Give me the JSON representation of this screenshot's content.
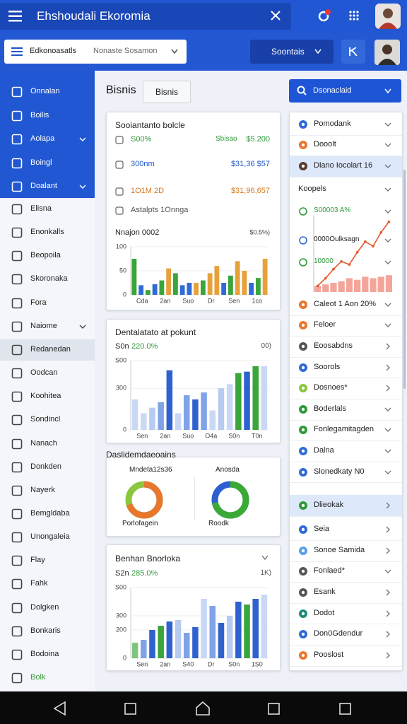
{
  "header": {
    "title": "Ehshoudali Ekoromia"
  },
  "toolbar": {
    "menu_label": "Edkonoasatls",
    "search_placeholder": "Nonaste Sosamon",
    "button": "Soontais"
  },
  "sidebar": {
    "primary_items": [
      {
        "label": "Onnalan"
      },
      {
        "label": "Boilis"
      },
      {
        "label": "Aolapa",
        "chevron": true
      },
      {
        "label": "Boingl"
      },
      {
        "label": "Doalant",
        "chevron": true
      }
    ],
    "items": [
      {
        "label": "Elisna"
      },
      {
        "label": "Enonkalls"
      },
      {
        "label": "Beopoila"
      },
      {
        "label": "Skoronaka"
      },
      {
        "label": "Fora"
      },
      {
        "label": "Naiome",
        "chevron": true
      },
      {
        "label": "Redanedan",
        "highlighted": true
      },
      {
        "label": "Oodcan"
      },
      {
        "label": "Koohitea"
      },
      {
        "label": "Sondincl"
      },
      {
        "label": "Nanach"
      },
      {
        "label": "Donkden"
      },
      {
        "label": "Nayerk"
      },
      {
        "label": "Bemgldaba"
      },
      {
        "label": "Unongaleia"
      },
      {
        "label": "Flay"
      },
      {
        "label": "Fahk"
      },
      {
        "label": "Dolgken"
      },
      {
        "label": "Bonkaris"
      },
      {
        "label": "Bodoina"
      },
      {
        "label": "Bolk",
        "color": "#3a9a3a"
      }
    ]
  },
  "main": {
    "heading": "Bisnis",
    "heading_button": "Bisnis",
    "card_a": {
      "title": "Sooiantanto bolcle",
      "rows": [
        {
          "label": "S00%",
          "note": "Sbisao",
          "value": "$5.200",
          "color": "#2e9a3a"
        },
        {
          "label": "300nm",
          "value": "$31,36 $57",
          "color": "#1d55c9"
        },
        {
          "label": "1O1M 2D",
          "value": "$31,96,657",
          "color": "#d9771e"
        },
        {
          "label": "Astalpts 1Onnga",
          "color": "#555555"
        }
      ],
      "chart": {
        "type": "bar",
        "title": "Nnajon 0002",
        "note": "$0.5%)",
        "categories": [
          "Cda",
          "2an",
          "Suo",
          "Dr",
          "Sen",
          "1co"
        ],
        "values": [
          75,
          20,
          10,
          22,
          30,
          55,
          45,
          20,
          25,
          25,
          30,
          45,
          60,
          25,
          40,
          70,
          50,
          25,
          35,
          75
        ],
        "colors": [
          "#3aa53a",
          "#2f6bd6",
          "#3aa53a",
          "#2f6bd6",
          "#3aa53a",
          "#e7a13a",
          "#3aa53a",
          "#2f6bd6",
          "#2f6bd6",
          "#e7a13a",
          "#3aa53a",
          "#e7a13a",
          "#e7a13a",
          "#2f6bd6",
          "#3aa53a",
          "#e7a13a",
          "#e7a13a",
          "#2f6bd6",
          "#3aa53a",
          "#e7a13a"
        ],
        "ylim": [
          0,
          100
        ],
        "yticks": [
          0,
          50,
          100
        ]
      }
    },
    "card_b": {
      "title": "Dentalatato at pokunt",
      "subtitle_label": "S0n",
      "subtitle_value": "220.0%",
      "note": "00)",
      "chart": {
        "type": "bar",
        "categories": [
          "Sen",
          "2an",
          "Suo",
          "O4a",
          "S0n",
          "T0n"
        ],
        "values": [
          220,
          120,
          160,
          200,
          430,
          120,
          250,
          220,
          270,
          140,
          300,
          330,
          410,
          420,
          460,
          460
        ],
        "colors": [
          "#c9d8f5",
          "#c9d8f5",
          "#b7caf0",
          "#7fa3e6",
          "#2f62cf",
          "#c9d8f5",
          "#7fa3e6",
          "#2f62cf",
          "#7fa3e6",
          "#c9d8f5",
          "#b7caf0",
          "#c9d8f5",
          "#3aa53a",
          "#2f62cf",
          "#3aa53a",
          "#c9d8f5"
        ],
        "ylim": [
          0,
          500
        ],
        "yticks": [
          0,
          {
            "value": 300,
            "label": "300"
          },
          {
            "value": 500,
            "label": "S00"
          }
        ]
      }
    },
    "card_c": {
      "title": "Daslidemdaeoains",
      "left": {
        "label": "Mndeta12s36",
        "caption": "Porlofagein",
        "value": 70,
        "color": "#e8772e",
        "track": "#8cc63f"
      },
      "right": {
        "label": "Anosda",
        "caption": "Roodk",
        "value": 72,
        "color": "#3aaa35",
        "track": "#2d5fd0"
      }
    },
    "card_d": {
      "title": "Benhan Bnorloka",
      "subtitle_label": "S2n",
      "subtitle_value": "285.0%",
      "note": "1K)",
      "chart": {
        "type": "bar",
        "categories": [
          "Sen",
          "2an",
          "S40",
          "Dr",
          "S0n",
          "1S0"
        ],
        "values": [
          110,
          130,
          200,
          230,
          260,
          270,
          180,
          220,
          420,
          370,
          250,
          300,
          400,
          380,
          420,
          450
        ],
        "colors": [
          "#7fc47f",
          "#7fa3e6",
          "#2f62cf",
          "#3aa53a",
          "#2f62cf",
          "#b7caf0",
          "#7fa3e6",
          "#2f62cf",
          "#c9d8f5",
          "#7fa3e6",
          "#2f62cf",
          "#b7caf0",
          "#2f62cf",
          "#3aa53a",
          "#2f62cf",
          "#c9d8f5"
        ],
        "ylim": [
          0,
          500
        ],
        "yticks": [
          0,
          200,
          300,
          {
            "value": 500,
            "label": "S00"
          }
        ]
      }
    }
  },
  "right": {
    "dropdown": "Dsonaclaid",
    "top_items": [
      {
        "label": "Pomodank",
        "icon_color": "#2f6bd6",
        "chevron": "down"
      },
      {
        "label": "Dooolt",
        "icon_color": "#e8772e",
        "chevron": "down"
      },
      {
        "label": "Dlano Iocolart 16",
        "icon_color": "#5a3a2a",
        "chevron": "down",
        "highlighted": true
      }
    ],
    "section_title": "Koopels",
    "chart": {
      "type": "line",
      "labels": [
        {
          "text": "S00003 A%",
          "color": "#2e9a3a"
        },
        {
          "text": "0000Oulksagn",
          "color": "#222222"
        },
        {
          "text": "10000",
          "color": "#2e9a3a"
        }
      ],
      "values": [
        8,
        18,
        30,
        40,
        36,
        52,
        66,
        60,
        78,
        92
      ],
      "color": "#e5562b",
      "bars": [
        8,
        10,
        12,
        14,
        18,
        16,
        20,
        18,
        20,
        22
      ],
      "bar_color": "#f4a59a",
      "ylim": [
        0,
        100
      ]
    },
    "items": [
      {
        "label": "Caleot 1 Aon 20%",
        "icon_color": "#e8772e",
        "chevron": "down"
      },
      {
        "label": "Feloer",
        "icon_color": "#e8772e",
        "chevron": "down"
      },
      {
        "label": "Eoosabdns",
        "icon_color": "#555555",
        "chevron": "right"
      },
      {
        "label": "Soorols",
        "icon_color": "#2f6bd6",
        "chevron": "right"
      },
      {
        "label": "Dosnoes*",
        "icon_color": "#8cc63f",
        "chevron": "right"
      },
      {
        "label": "Boderlals",
        "icon_color": "#2e9a3a",
        "chevron": "down"
      },
      {
        "label": "Fonlegamitagden",
        "icon_color": "#2e9a3a",
        "chevron": "down"
      },
      {
        "label": "Dalna",
        "icon_color": "#2f6bd6",
        "chevron": "down"
      },
      {
        "label": "Slonedkaty N0",
        "icon_color": "#2f6bd6",
        "chevron": "down"
      },
      {
        "label": "Dlieokak",
        "icon_color": "#2e9a3a",
        "chevron": "right",
        "highlighted": true
      },
      {
        "label": "Seia",
        "icon_color": "#2f6bd6",
        "chevron": "right"
      },
      {
        "label": "Sonoe Samida",
        "icon_color": "#5aa0e6",
        "chevron": "right"
      },
      {
        "label": "Fonlaed*",
        "icon_color": "#555555",
        "chevron": "down"
      },
      {
        "label": "Esank",
        "icon_color": "#555555",
        "chevron": "right"
      },
      {
        "label": "Dodot",
        "icon_color": "#1d8a7a",
        "chevron": "right"
      },
      {
        "label": "Don0Gdendur",
        "icon_color": "#2f6bd6",
        "chevron": "right"
      },
      {
        "label": "Pooslost",
        "icon_color": "#e8772e",
        "chevron": "right"
      }
    ]
  }
}
